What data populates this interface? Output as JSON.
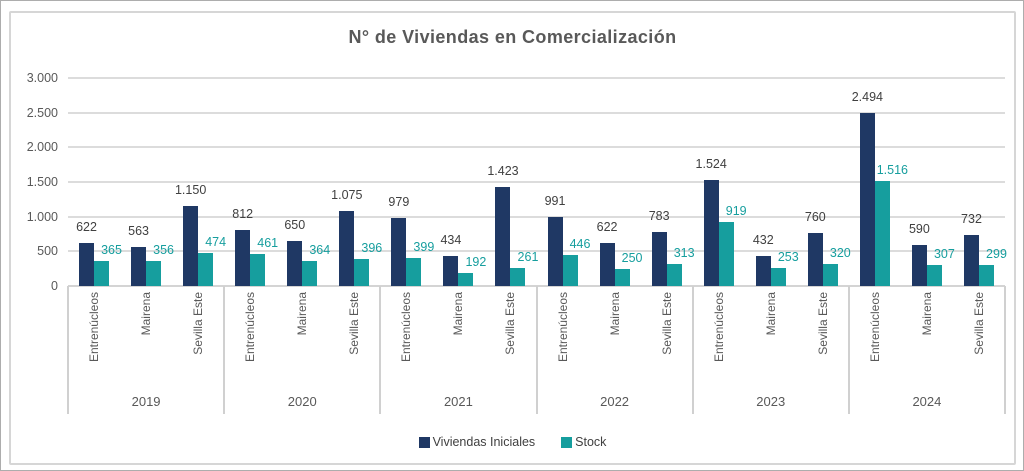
{
  "chart_data": {
    "type": "bar",
    "title": "N° de Viviendas en Comercialización",
    "xlabel": "",
    "ylabel": "",
    "ylim": [
      0,
      3000
    ],
    "y_tick_interval": 500,
    "y_tick_labels": [
      "0",
      "500",
      "1.000",
      "1.500",
      "2.000",
      "2.500",
      "3.000"
    ],
    "grid": true,
    "legend_position": "bottom",
    "number_format": "thousands-dot",
    "series": [
      {
        "name": "Viviendas Iniciales",
        "color": "#1F3864"
      },
      {
        "name": "Stock",
        "color": "#169E9E"
      }
    ],
    "groups": [
      {
        "year": "2019",
        "categories": [
          "Entrenúcleos",
          "Mairena",
          "Sevilla Este"
        ],
        "viviendas_iniciales": [
          622,
          563,
          1150
        ],
        "stock": [
          365,
          356,
          474
        ]
      },
      {
        "year": "2020",
        "categories": [
          "Entrenúcleos",
          "Mairena",
          "Sevilla Este"
        ],
        "viviendas_iniciales": [
          812,
          650,
          1075
        ],
        "stock": [
          461,
          364,
          396
        ]
      },
      {
        "year": "2021",
        "categories": [
          "Entrenúcleos",
          "Mairena",
          "Sevilla Este"
        ],
        "viviendas_iniciales": [
          979,
          434,
          1423
        ],
        "stock": [
          399,
          192,
          261
        ]
      },
      {
        "year": "2022",
        "categories": [
          "Entrenúcleos",
          "Mairena",
          "Sevilla Este"
        ],
        "viviendas_iniciales": [
          991,
          622,
          783
        ],
        "stock": [
          446,
          250,
          313
        ]
      },
      {
        "year": "2023",
        "categories": [
          "Entrenúcleos",
          "Mairena",
          "Sevilla Este"
        ],
        "viviendas_iniciales": [
          1524,
          432,
          760
        ],
        "stock": [
          919,
          253,
          320
        ]
      },
      {
        "year": "2024",
        "categories": [
          "Entrenúcleos",
          "Mairena",
          "Sevilla Este"
        ],
        "viviendas_iniciales": [
          2494,
          590,
          732
        ],
        "stock": [
          1516,
          307,
          299
        ]
      }
    ]
  },
  "colors": {
    "grid": "#DCDCDC",
    "axis_text": "#595959",
    "value_label": "#404040",
    "frame_border": "#D6D6D6"
  }
}
